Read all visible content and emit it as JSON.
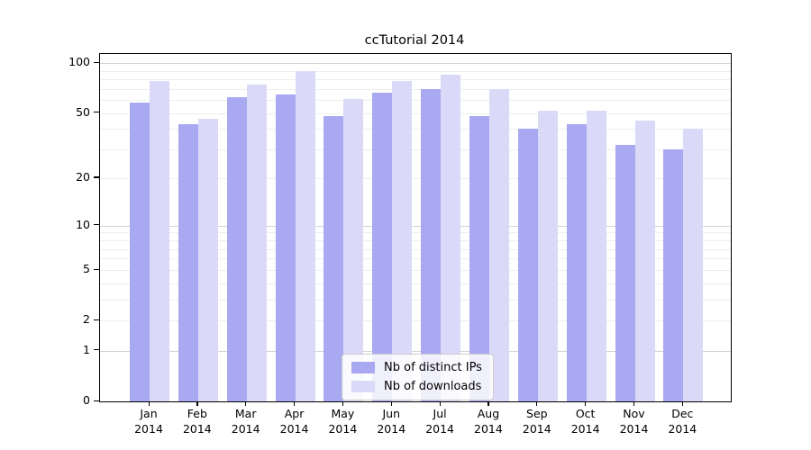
{
  "title": "ccTutorial 2014",
  "chart_data": {
    "type": "bar",
    "title": "ccTutorial 2014",
    "y_scale": "log(1+v)",
    "ylim": [
      0,
      111
    ],
    "y_ticks": [
      100,
      50,
      20,
      10,
      5,
      2,
      1,
      0
    ],
    "grid": "horizontal, log minor gridlines on",
    "legend_position": "inside bottom-center",
    "categories": [
      "Jan",
      "Feb",
      "Mar",
      "Apr",
      "May",
      "Jun",
      "Jul",
      "Aug",
      "Sep",
      "Oct",
      "Nov",
      "Dec"
    ],
    "x_year_label": "2014",
    "series": [
      {
        "name": "Nb of distinct IPs",
        "color": "#a9a9f2",
        "values": [
          58,
          43,
          62,
          65,
          48,
          66,
          70,
          48,
          40,
          43,
          32,
          30
        ]
      },
      {
        "name": "Nb of downloads",
        "color": "#dadaf8",
        "values": [
          78,
          46,
          74,
          90,
          61,
          78,
          85,
          70,
          52,
          52,
          45,
          40
        ]
      }
    ]
  },
  "colors": {
    "spine": "#000000",
    "grid_minor": "#eeeeee",
    "grid_major": "#d4d4d4",
    "background": "#ffffff",
    "legend_border": "#cccccc"
  }
}
